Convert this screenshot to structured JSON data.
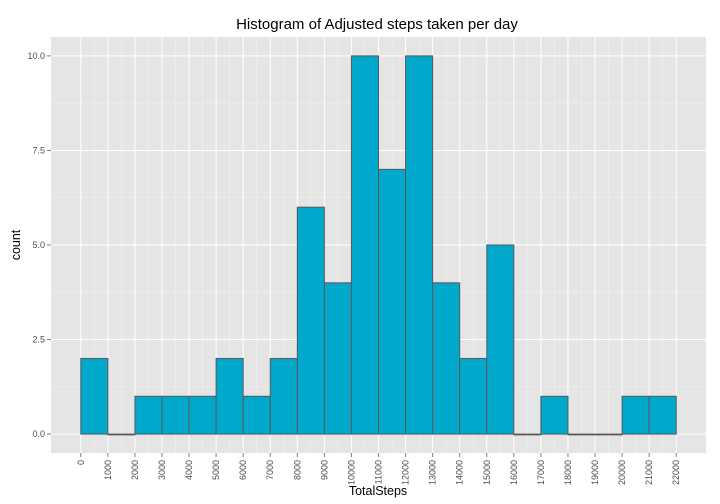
{
  "chart_data": {
    "type": "bar",
    "title": "Histogram of Adjusted steps taken per day",
    "xlabel": "TotalSteps",
    "ylabel": "count",
    "bin_width": 1000,
    "bin_edges": [
      0,
      1000,
      2000,
      3000,
      4000,
      5000,
      6000,
      7000,
      8000,
      9000,
      10000,
      11000,
      12000,
      13000,
      14000,
      15000,
      16000,
      17000,
      18000,
      19000,
      20000,
      21000,
      22000
    ],
    "values": [
      2,
      0,
      1,
      1,
      1,
      2,
      1,
      2,
      6,
      4,
      10,
      7,
      10,
      4,
      2,
      5,
      0,
      1,
      0,
      0,
      1,
      1
    ],
    "x_ticks": [
      "0",
      "1000",
      "2000",
      "3000",
      "4000",
      "5000",
      "6000",
      "7000",
      "8000",
      "9000",
      "10000",
      "11000",
      "12000",
      "13000",
      "14000",
      "15000",
      "16000",
      "17000",
      "18000",
      "19000",
      "20000",
      "21000",
      "22000"
    ],
    "y_ticks": [
      "0.0",
      "2.5",
      "5.0",
      "7.5",
      "10.0"
    ],
    "y_tick_values": [
      0,
      2.5,
      5,
      7.5,
      10
    ],
    "xlim": [
      -1100,
      23100
    ],
    "ylim": [
      -0.5,
      10.5
    ],
    "grid": true,
    "colors": {
      "panel_background": "#e5e5e5",
      "grid_major": "#ffffff",
      "grid_minor": "#f2f2f2",
      "bar_fill": "#00a8cc",
      "bar_outline": "#595959"
    }
  }
}
